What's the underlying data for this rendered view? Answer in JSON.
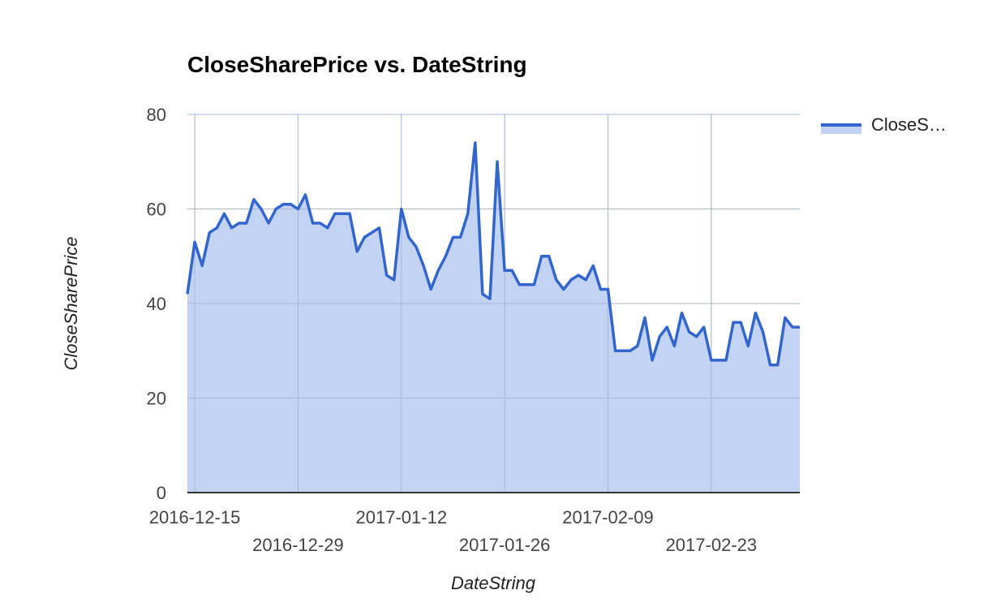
{
  "chart_data": {
    "type": "area",
    "title": "CloseSharePrice vs. DateString",
    "xlabel": "DateString",
    "ylabel": "CloseSharePrice",
    "ylim": [
      0,
      80
    ],
    "yticks": [
      0,
      20,
      40,
      60,
      80
    ],
    "xticks": [
      "2016-12-15",
      "2016-12-29",
      "2017-01-12",
      "2017-01-26",
      "2017-02-09",
      "2017-02-23"
    ],
    "xlim": [
      "2016-12-14",
      "2017-03-07"
    ],
    "grid": true,
    "legend": "right",
    "color_line": "#3366cc",
    "color_fill": "#c0d1f2",
    "series": [
      {
        "name": "CloseS…",
        "x": [
          "2016-12-14",
          "2016-12-15",
          "2016-12-16",
          "2016-12-17",
          "2016-12-18",
          "2016-12-19",
          "2016-12-20",
          "2016-12-21",
          "2016-12-22",
          "2016-12-23",
          "2016-12-24",
          "2016-12-25",
          "2016-12-26",
          "2016-12-27",
          "2016-12-28",
          "2016-12-29",
          "2016-12-30",
          "2016-12-31",
          "2017-01-01",
          "2017-01-02",
          "2017-01-03",
          "2017-01-04",
          "2017-01-05",
          "2017-01-06",
          "2017-01-07",
          "2017-01-08",
          "2017-01-09",
          "2017-01-10",
          "2017-01-11",
          "2017-01-12",
          "2017-01-13",
          "2017-01-14",
          "2017-01-15",
          "2017-01-16",
          "2017-01-17",
          "2017-01-18",
          "2017-01-19",
          "2017-01-20",
          "2017-01-21",
          "2017-01-22",
          "2017-01-23",
          "2017-01-24",
          "2017-01-25",
          "2017-01-26",
          "2017-01-27",
          "2017-01-28",
          "2017-01-29",
          "2017-01-30",
          "2017-01-31",
          "2017-02-01",
          "2017-02-02",
          "2017-02-03",
          "2017-02-04",
          "2017-02-05",
          "2017-02-06",
          "2017-02-07",
          "2017-02-08",
          "2017-02-09",
          "2017-02-10",
          "2017-02-11",
          "2017-02-12",
          "2017-02-13",
          "2017-02-14",
          "2017-02-15",
          "2017-02-16",
          "2017-02-17",
          "2017-02-18",
          "2017-02-19",
          "2017-02-20",
          "2017-02-21",
          "2017-02-22",
          "2017-02-23",
          "2017-02-24",
          "2017-02-25",
          "2017-02-26",
          "2017-02-27",
          "2017-02-28",
          "2017-03-01",
          "2017-03-02",
          "2017-03-03",
          "2017-03-04",
          "2017-03-05",
          "2017-03-06",
          "2017-03-07"
        ],
        "values": [
          42,
          53,
          48,
          55,
          56,
          59,
          56,
          57,
          57,
          62,
          60,
          57,
          60,
          61,
          61,
          60,
          63,
          57,
          57,
          56,
          59,
          59,
          59,
          51,
          54,
          55,
          56,
          46,
          45,
          60,
          54,
          52,
          48,
          43,
          47,
          50,
          54,
          54,
          59,
          74,
          42,
          41,
          70,
          47,
          47,
          44,
          44,
          44,
          50,
          50,
          45,
          43,
          45,
          46,
          45,
          48,
          43,
          43,
          30,
          30,
          30,
          31,
          37,
          28,
          33,
          35,
          31,
          38,
          34,
          33,
          35,
          28,
          28,
          28,
          36,
          36,
          31,
          38,
          34,
          27,
          27,
          37,
          35,
          35
        ]
      }
    ]
  },
  "legend": {
    "label": "CloseS…"
  }
}
